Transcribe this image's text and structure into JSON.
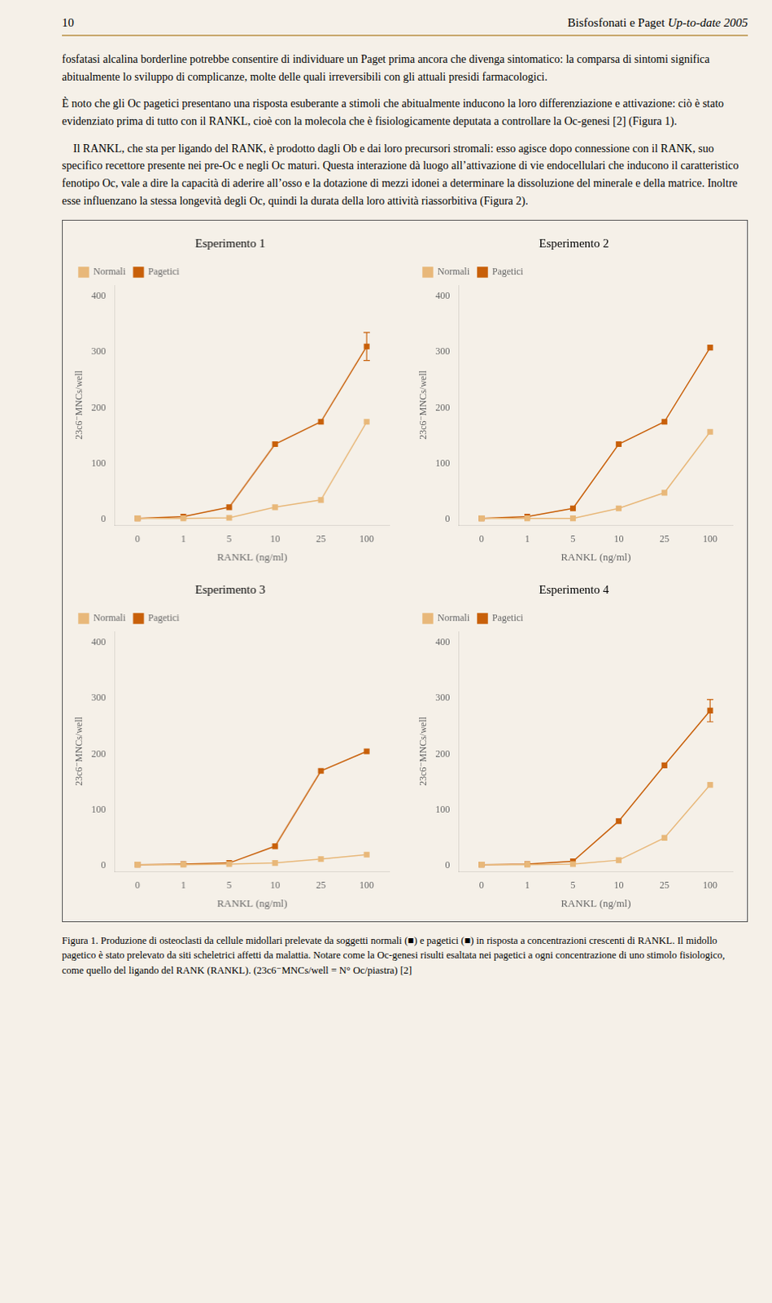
{
  "page_number": "10",
  "header_title": "Bisfosfonati e Paget",
  "header_edition": "Up-to-date 2005",
  "text_paragraphs": [
    "fosfatasi alcalina borderline potrebbe consentire di individuare un Paget prima ancora che divenga sintomatico: la comparsa di sintomi significa abitualmente lo sviluppo di complicanze, molte delle quali irreversibili con gli attuali presidi farmacologici.",
    "È noto che gli Oc pagetici presentano una risposta esuberante a stimoli che abitualmente inducono la loro differenziazione e attivazione: ciò è stato evidenziato prima di tutto con il RANKL, cioè con la molecola che è fisiologicamente deputata a controllare la Oc-genesi [2] (Figura 1).",
    "    Il RANKL, che sta per ligando del RANK, è prodotto dagli Ob e dai loro precursori stromali: esso agisce dopo connessione con il RANK, suo specifico recettore presente nei pre-Oc e negli Oc maturi. Questa interazione dà luogo all’attivazione di vie endocellulari che inducono il caratteristico fenotipo Oc, vale a dire la capacità di aderire all’osso e la dotazione di mezzi idonei a determinare la dissoluzione del minerale e della matrice. Inoltre esse influenzano la stessa longevità degli Oc, quindi la durata della loro attività riassorbitiva (Figura 2)."
  ],
  "caption": "Figura 1. Produzione di osteoclasti da cellule midollari prelevate da soggetti normali (■) e pagetici (■) in risposta a concentrazioni crescenti di RANKL. Il midollo pagetico è stato prelevato da siti scheletrici affetti da malattia. Notare come la Oc-genesi risulti esaltata nei pagetici a ogni concentrazione di uno stimolo fisiologico, come quello del ligando del RANK (RANKL). (23c6⁻MNCs/well = N° Oc/piastra) [2]",
  "chart_data": [
    {
      "type": "line",
      "title": "Esperimento 1",
      "xlabel": "RANKL (ng/ml)",
      "ylabel": "23c6⁻MNCs/well",
      "categories": [
        "0",
        "1",
        "5",
        "10",
        "25",
        "100"
      ],
      "series": [
        {
          "name": "Pagetici",
          "color": "#c8600a",
          "marker": "square",
          "values": [
            2,
            5,
            22,
            135,
            175,
            310
          ],
          "errors": [
            0,
            0,
            0,
            0,
            0,
            25
          ]
        },
        {
          "name": "Normali",
          "color": "#e8b87a",
          "marker": "square",
          "values": [
            2,
            2,
            3,
            22,
            35,
            175
          ],
          "errors": [
            0,
            0,
            0,
            0,
            0,
            0
          ]
        }
      ],
      "ylim": [
        -10,
        420
      ],
      "yticks": [
        0,
        100,
        200,
        300,
        400
      ],
      "grid": false,
      "legend": "upper left"
    },
    {
      "type": "line",
      "title": "Esperimento 2",
      "xlabel": "RANKL (ng/ml)",
      "ylabel": "23c6⁻MNCs/well",
      "categories": [
        "0",
        "1",
        "5",
        "10",
        "25",
        "100"
      ],
      "series": [
        {
          "name": "Pagetici",
          "color": "#c8600a",
          "marker": "square",
          "values": [
            2,
            5,
            20,
            135,
            175,
            308
          ],
          "errors": [
            0,
            0,
            0,
            0,
            0,
            0
          ]
        },
        {
          "name": "Normali",
          "color": "#e8b87a",
          "marker": "square",
          "values": [
            2,
            2,
            2,
            20,
            48,
            157
          ],
          "errors": [
            0,
            0,
            0,
            0,
            0,
            0
          ]
        }
      ],
      "ylim": [
        -10,
        420
      ],
      "yticks": [
        0,
        100,
        200,
        300,
        400
      ],
      "grid": false,
      "legend": "upper left"
    },
    {
      "type": "line",
      "title": "Esperimento 3",
      "xlabel": "RANKL (ng/ml)",
      "ylabel": "23c6⁻MNCs/well",
      "categories": [
        "0",
        "1",
        "5",
        "10",
        "25",
        "100"
      ],
      "series": [
        {
          "name": "Pagetici",
          "color": "#c8600a",
          "marker": "square",
          "values": [
            2,
            3,
            5,
            35,
            170,
            205
          ],
          "errors": [
            0,
            0,
            0,
            0,
            0,
            0
          ]
        },
        {
          "name": "Normali",
          "color": "#e8b87a",
          "marker": "square",
          "values": [
            2,
            2,
            3,
            5,
            12,
            20
          ],
          "errors": [
            0,
            0,
            0,
            0,
            0,
            0
          ]
        }
      ],
      "ylim": [
        -10,
        420
      ],
      "yticks": [
        0,
        100,
        200,
        300,
        400
      ],
      "grid": false,
      "legend": "upper left"
    },
    {
      "type": "line",
      "title": "Esperimento 4",
      "xlabel": "RANKL (ng/ml)",
      "ylabel": "23c6⁻MNCs/well",
      "categories": [
        "0",
        "1",
        "5",
        "10",
        "25",
        "100"
      ],
      "series": [
        {
          "name": "Pagetici",
          "color": "#c8600a",
          "marker": "square",
          "values": [
            2,
            3,
            8,
            80,
            180,
            278
          ],
          "errors": [
            0,
            0,
            0,
            0,
            0,
            20
          ]
        },
        {
          "name": "Normali",
          "color": "#e8b87a",
          "marker": "square",
          "values": [
            2,
            2,
            3,
            10,
            50,
            145
          ],
          "errors": [
            0,
            0,
            0,
            0,
            0,
            0
          ]
        }
      ],
      "ylim": [
        -10,
        420
      ],
      "yticks": [
        0,
        100,
        200,
        300,
        400
      ],
      "grid": false,
      "legend": "upper left"
    }
  ]
}
